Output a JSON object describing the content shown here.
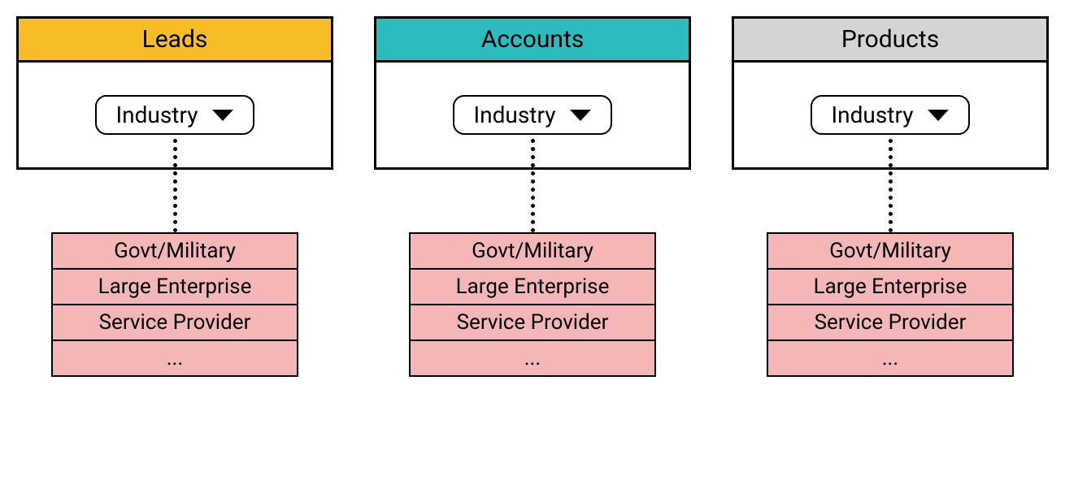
{
  "diagram": {
    "type": "infographic",
    "background_color": "#ffffff",
    "border_color": "#000000",
    "border_width": 3,
    "header_fontsize": 30,
    "pill_fontsize": 28,
    "option_fontsize": 26,
    "pill_border_radius": 14,
    "connector_style": "dotted",
    "connector_color": "#000000",
    "option_fill": "#f4b6b6",
    "columns": [
      {
        "id": "leads",
        "title": "Leads",
        "header_color": "#f6bd28",
        "dropdown_label": "Industry",
        "options": [
          "Govt/Military",
          "Large Enterprise",
          "Service Provider",
          "..."
        ]
      },
      {
        "id": "accounts",
        "title": "Accounts",
        "header_color": "#2dbcbd",
        "dropdown_label": "Industry",
        "options": [
          "Govt/Military",
          "Large Enterprise",
          "Service Provider",
          "..."
        ]
      },
      {
        "id": "products",
        "title": "Products",
        "header_color": "#d4d4d4",
        "dropdown_label": "Industry",
        "options": [
          "Govt/Military",
          "Large Enterprise",
          "Service Provider",
          "..."
        ]
      }
    ]
  }
}
